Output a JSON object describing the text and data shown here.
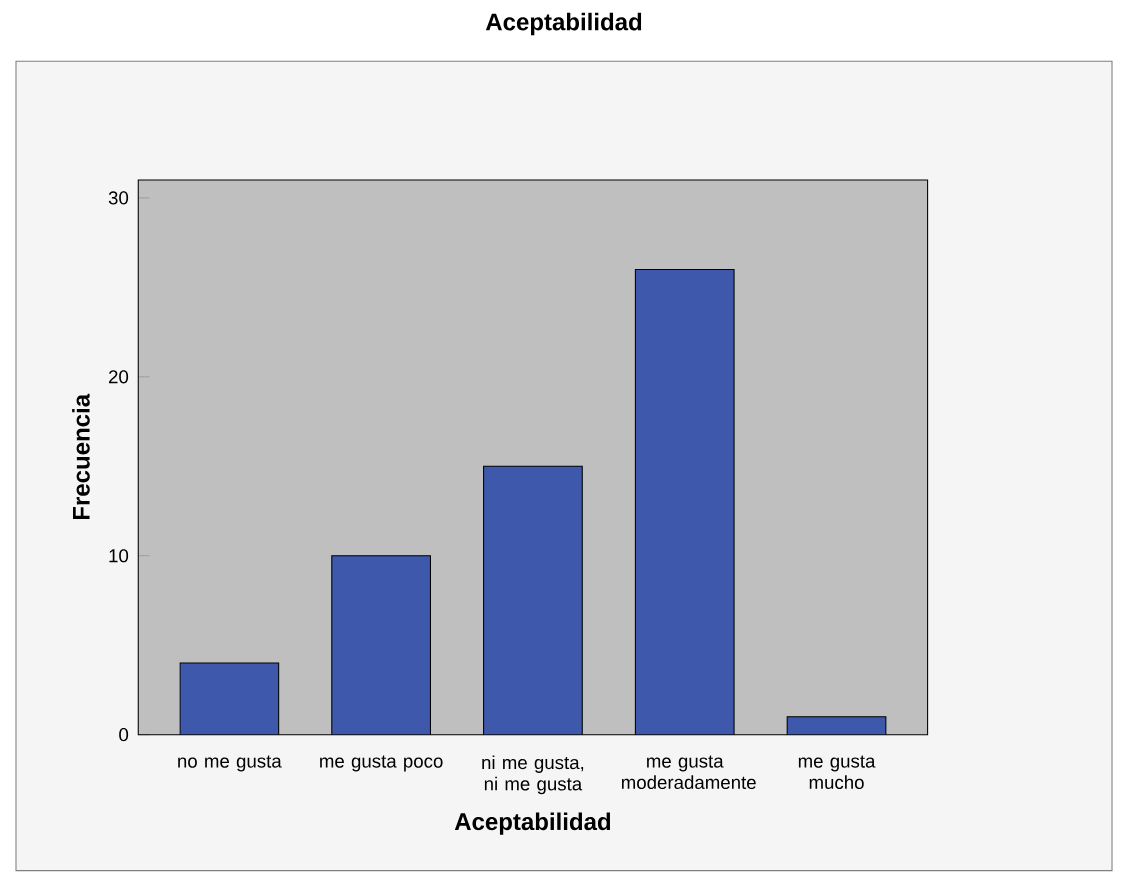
{
  "chart_data": {
    "type": "bar",
    "title": "Aceptabilidad",
    "xlabel": "Aceptabilidad",
    "ylabel": "Frecuencia",
    "categories": [
      "no me gusta",
      "me gusta poco",
      "ni me gusta, ni me gusta",
      "me gusta moderadamente",
      "me gusta mucho"
    ],
    "values": [
      4,
      10,
      15,
      26,
      1
    ],
    "color": "#3e58ac",
    "ylim": [
      0,
      31
    ],
    "yticks": [
      0,
      10,
      20,
      30
    ]
  }
}
